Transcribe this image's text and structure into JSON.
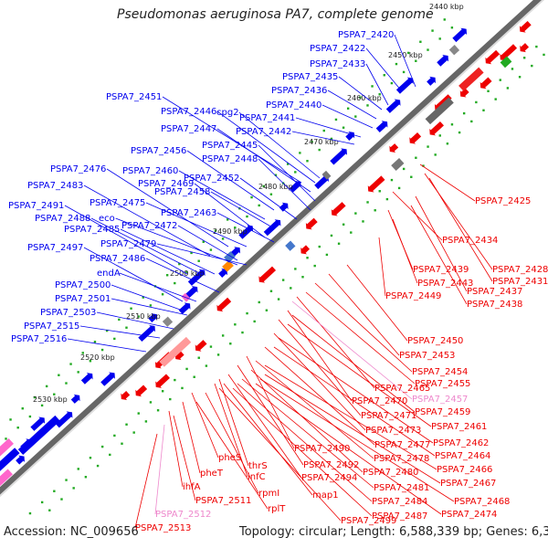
{
  "title": "Pseudomonas aeruginosa PA7, complete genome",
  "footer": {
    "accession": "Accession: NC_009656",
    "summary": "Topology: circular; Length: 6,588,339 bp; Genes: 6,361"
  },
  "colors": {
    "plus_strand": "#0000ee",
    "minus_strand": "#ee0000",
    "rna": "#ff66cc",
    "pseudo_label": "#ee88cc",
    "tick_dot": "#22aa22",
    "backbone": "#666666"
  },
  "kbp_ticks": [
    "2440 kbp",
    "2450 kbp",
    "2460 kbp",
    "2470 kbp",
    "2480 kbp",
    "2490 kbp",
    "2500 kbp",
    "2510 kbp",
    "2520 kbp",
    "2530 kbp"
  ],
  "plus_labels": [
    "PSPA7_2420",
    "PSPA7_2422",
    "PSPA7_2433",
    "PSPA7_2435",
    "PSPA7_2436",
    "PSPA7_2440",
    "PSPA7_2441",
    "PSPA7_2442",
    "PSPA7_2451",
    "PSPA7_2446",
    "cpg2",
    "PSPA7_2447",
    "PSPA7_2445",
    "PSPA7_2448",
    "PSPA7_2456",
    "PSPA7_2460",
    "PSPA7_2452",
    "PSPA7_2476",
    "PSPA7_2469",
    "PSPA7_2458",
    "PSPA7_2483",
    "PSPA7_2475",
    "PSPA7_2491",
    "PSPA7_2463",
    "PSPA7_2488",
    "eco",
    "PSPA7_2472",
    "PSPA7_2485",
    "PSPA7_2479",
    "PSPA7_2497",
    "PSPA7_2486",
    "endA",
    "PSPA7_2500",
    "PSPA7_2501",
    "PSPA7_2503",
    "PSPA7_2515",
    "PSPA7_2516"
  ],
  "minus_labels": [
    "PSPA7_2425",
    "PSPA7_2434",
    "PSPA7_2428",
    "PSPA7_2439",
    "PSPA7_2431",
    "PSPA7_2443",
    "PSPA7_2437",
    "PSPA7_2449",
    "PSPA7_2438",
    "PSPA7_2450",
    "PSPA7_2453",
    "PSPA7_2454",
    "PSPA7_2455",
    "PSPA7_2465",
    "PSPA7_2457",
    "PSPA7_2470",
    "PSPA7_2459",
    "PSPA7_2471",
    "PSPA7_2461",
    "PSPA7_2473",
    "PSPA7_2462",
    "PSPA7_2477",
    "PSPA7_2464",
    "PSPA7_2490",
    "PSPA7_2478",
    "PSPA7_2466",
    "pheS",
    "thrS",
    "PSPA7_2492",
    "PSPA7_2480",
    "PSPA7_2467",
    "pheT",
    "infC",
    "PSPA7_2494",
    "PSPA7_2481",
    "PSPA7_2468",
    "ihfA",
    "rpmI",
    "map1",
    "PSPA7_2484",
    "PSPA7_2474",
    "PSPA7_2511",
    "rplT",
    "PSPA7_2499",
    "PSPA7_2487",
    "PSPA7_2512",
    "PSPA7_2513"
  ],
  "pseudo_labels": [
    "PSPA7_2457",
    "PSPA7_2512"
  ]
}
